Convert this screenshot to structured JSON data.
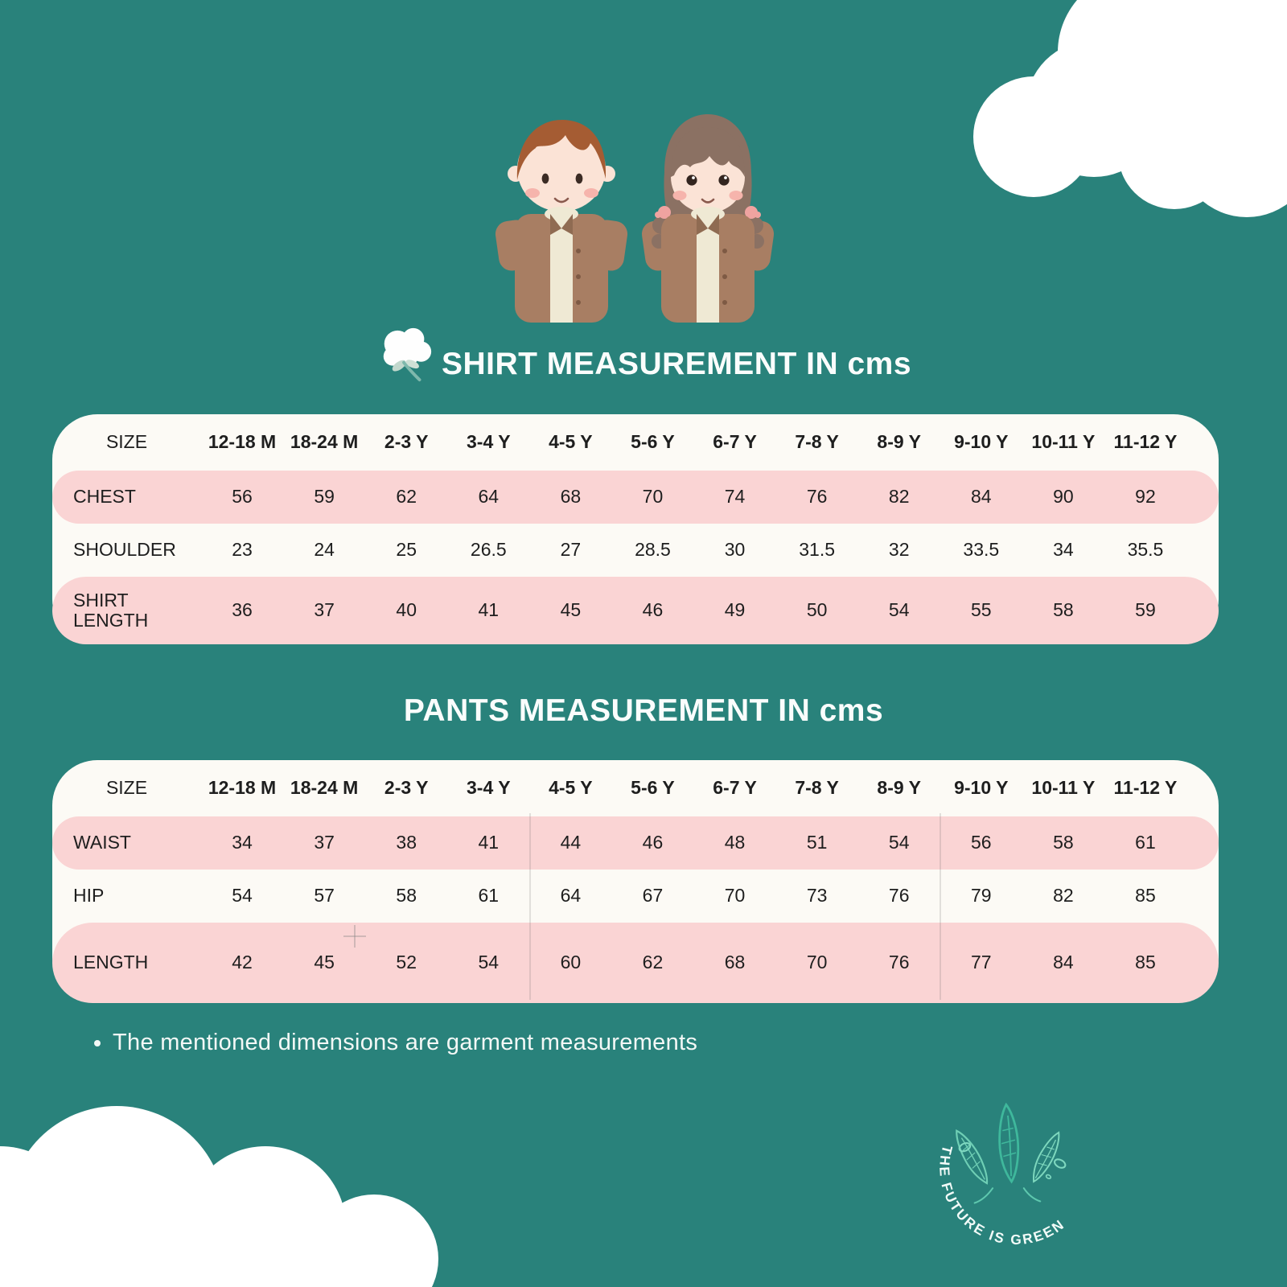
{
  "canvas": {
    "background_color": "#29827B",
    "panel_color": "#FCFAF5",
    "pink_row_color": "#FAD4D4",
    "title_color": "#FAFDFC"
  },
  "shirt_section": {
    "title": "SHIRT MEASUREMENT IN cms",
    "icon": "cotton-flower-icon",
    "table": {
      "header_label": "SIZE",
      "sizes": [
        "12-18 M",
        "18-24 M",
        "2-3 Y",
        "3-4 Y",
        "4-5 Y",
        "5-6 Y",
        "6-7 Y",
        "7-8 Y",
        "8-9 Y",
        "9-10 Y",
        "10-11 Y",
        "11-12 Y"
      ],
      "rows": [
        {
          "label": "CHEST",
          "values": [
            56,
            59,
            62,
            64,
            68,
            70,
            74,
            76,
            82,
            84,
            90,
            92
          ]
        },
        {
          "label": "SHOULDER",
          "values": [
            23,
            24,
            25,
            26.5,
            27,
            28.5,
            30,
            31.5,
            32,
            33.5,
            34,
            35.5
          ]
        },
        {
          "label": "SHIRT LENGTH",
          "values": [
            36,
            37,
            40,
            41,
            45,
            46,
            49,
            50,
            54,
            55,
            58,
            59
          ]
        }
      ]
    }
  },
  "pants_section": {
    "title": "PANTS MEASUREMENT IN cms",
    "table": {
      "header_label": "SIZE",
      "sizes": [
        "12-18 M",
        "18-24 M",
        "2-3 Y",
        "3-4 Y",
        "4-5 Y",
        "5-6 Y",
        "6-7 Y",
        "7-8 Y",
        "8-9 Y",
        "9-10 Y",
        "10-11 Y",
        "11-12 Y"
      ],
      "rows": [
        {
          "label": "WAIST",
          "values": [
            34,
            37,
            38,
            41,
            44,
            46,
            48,
            51,
            54,
            56,
            58,
            61
          ]
        },
        {
          "label": "HIP",
          "values": [
            54,
            57,
            58,
            61,
            64,
            67,
            70,
            73,
            76,
            79,
            82,
            85
          ]
        },
        {
          "label": "LENGTH",
          "values": [
            42,
            45,
            52,
            54,
            60,
            62,
            68,
            70,
            76,
            77,
            84,
            85
          ]
        }
      ]
    }
  },
  "note": {
    "text": "The mentioned dimensions are garment measurements"
  },
  "logo": {
    "arc_text": "THE FUTURE IS GREEN"
  }
}
